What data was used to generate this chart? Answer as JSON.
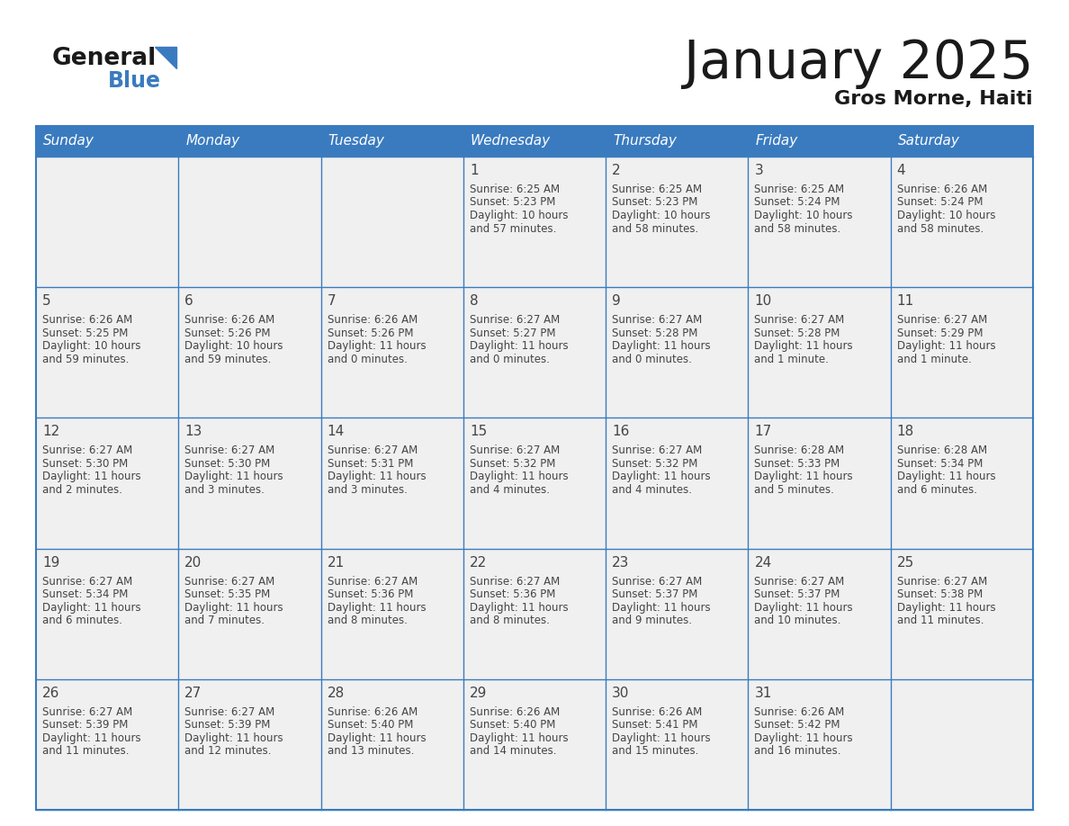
{
  "title": "January 2025",
  "subtitle": "Gros Morne, Haiti",
  "days_of_week": [
    "Sunday",
    "Monday",
    "Tuesday",
    "Wednesday",
    "Thursday",
    "Friday",
    "Saturday"
  ],
  "header_bg": "#3a7bbf",
  "header_text": "#ffffff",
  "cell_bg": "#f0f0f0",
  "border_color": "#3a7bbf",
  "text_color": "#444444",
  "calendar": [
    [
      {
        "day": null,
        "sunrise": null,
        "sunset": null,
        "daylight_hours": null,
        "daylight_mins": null,
        "daylight_min_word": null
      },
      {
        "day": null,
        "sunrise": null,
        "sunset": null,
        "daylight_hours": null,
        "daylight_mins": null,
        "daylight_min_word": null
      },
      {
        "day": null,
        "sunrise": null,
        "sunset": null,
        "daylight_hours": null,
        "daylight_mins": null,
        "daylight_min_word": null
      },
      {
        "day": 1,
        "sunrise": "6:25 AM",
        "sunset": "5:23 PM",
        "daylight_hours": 10,
        "daylight_mins": 57,
        "daylight_min_word": "minutes"
      },
      {
        "day": 2,
        "sunrise": "6:25 AM",
        "sunset": "5:23 PM",
        "daylight_hours": 10,
        "daylight_mins": 58,
        "daylight_min_word": "minutes"
      },
      {
        "day": 3,
        "sunrise": "6:25 AM",
        "sunset": "5:24 PM",
        "daylight_hours": 10,
        "daylight_mins": 58,
        "daylight_min_word": "minutes"
      },
      {
        "day": 4,
        "sunrise": "6:26 AM",
        "sunset": "5:24 PM",
        "daylight_hours": 10,
        "daylight_mins": 58,
        "daylight_min_word": "minutes"
      }
    ],
    [
      {
        "day": 5,
        "sunrise": "6:26 AM",
        "sunset": "5:25 PM",
        "daylight_hours": 10,
        "daylight_mins": 59,
        "daylight_min_word": "minutes"
      },
      {
        "day": 6,
        "sunrise": "6:26 AM",
        "sunset": "5:26 PM",
        "daylight_hours": 10,
        "daylight_mins": 59,
        "daylight_min_word": "minutes"
      },
      {
        "day": 7,
        "sunrise": "6:26 AM",
        "sunset": "5:26 PM",
        "daylight_hours": 11,
        "daylight_mins": 0,
        "daylight_min_word": "minutes"
      },
      {
        "day": 8,
        "sunrise": "6:27 AM",
        "sunset": "5:27 PM",
        "daylight_hours": 11,
        "daylight_mins": 0,
        "daylight_min_word": "minutes"
      },
      {
        "day": 9,
        "sunrise": "6:27 AM",
        "sunset": "5:28 PM",
        "daylight_hours": 11,
        "daylight_mins": 0,
        "daylight_min_word": "minutes"
      },
      {
        "day": 10,
        "sunrise": "6:27 AM",
        "sunset": "5:28 PM",
        "daylight_hours": 11,
        "daylight_mins": 1,
        "daylight_min_word": "minute"
      },
      {
        "day": 11,
        "sunrise": "6:27 AM",
        "sunset": "5:29 PM",
        "daylight_hours": 11,
        "daylight_mins": 1,
        "daylight_min_word": "minute"
      }
    ],
    [
      {
        "day": 12,
        "sunrise": "6:27 AM",
        "sunset": "5:30 PM",
        "daylight_hours": 11,
        "daylight_mins": 2,
        "daylight_min_word": "minutes"
      },
      {
        "day": 13,
        "sunrise": "6:27 AM",
        "sunset": "5:30 PM",
        "daylight_hours": 11,
        "daylight_mins": 3,
        "daylight_min_word": "minutes"
      },
      {
        "day": 14,
        "sunrise": "6:27 AM",
        "sunset": "5:31 PM",
        "daylight_hours": 11,
        "daylight_mins": 3,
        "daylight_min_word": "minutes"
      },
      {
        "day": 15,
        "sunrise": "6:27 AM",
        "sunset": "5:32 PM",
        "daylight_hours": 11,
        "daylight_mins": 4,
        "daylight_min_word": "minutes"
      },
      {
        "day": 16,
        "sunrise": "6:27 AM",
        "sunset": "5:32 PM",
        "daylight_hours": 11,
        "daylight_mins": 4,
        "daylight_min_word": "minutes"
      },
      {
        "day": 17,
        "sunrise": "6:28 AM",
        "sunset": "5:33 PM",
        "daylight_hours": 11,
        "daylight_mins": 5,
        "daylight_min_word": "minutes"
      },
      {
        "day": 18,
        "sunrise": "6:28 AM",
        "sunset": "5:34 PM",
        "daylight_hours": 11,
        "daylight_mins": 6,
        "daylight_min_word": "minutes"
      }
    ],
    [
      {
        "day": 19,
        "sunrise": "6:27 AM",
        "sunset": "5:34 PM",
        "daylight_hours": 11,
        "daylight_mins": 6,
        "daylight_min_word": "minutes"
      },
      {
        "day": 20,
        "sunrise": "6:27 AM",
        "sunset": "5:35 PM",
        "daylight_hours": 11,
        "daylight_mins": 7,
        "daylight_min_word": "minutes"
      },
      {
        "day": 21,
        "sunrise": "6:27 AM",
        "sunset": "5:36 PM",
        "daylight_hours": 11,
        "daylight_mins": 8,
        "daylight_min_word": "minutes"
      },
      {
        "day": 22,
        "sunrise": "6:27 AM",
        "sunset": "5:36 PM",
        "daylight_hours": 11,
        "daylight_mins": 8,
        "daylight_min_word": "minutes"
      },
      {
        "day": 23,
        "sunrise": "6:27 AM",
        "sunset": "5:37 PM",
        "daylight_hours": 11,
        "daylight_mins": 9,
        "daylight_min_word": "minutes"
      },
      {
        "day": 24,
        "sunrise": "6:27 AM",
        "sunset": "5:37 PM",
        "daylight_hours": 11,
        "daylight_mins": 10,
        "daylight_min_word": "minutes"
      },
      {
        "day": 25,
        "sunrise": "6:27 AM",
        "sunset": "5:38 PM",
        "daylight_hours": 11,
        "daylight_mins": 11,
        "daylight_min_word": "minutes"
      }
    ],
    [
      {
        "day": 26,
        "sunrise": "6:27 AM",
        "sunset": "5:39 PM",
        "daylight_hours": 11,
        "daylight_mins": 11,
        "daylight_min_word": "minutes"
      },
      {
        "day": 27,
        "sunrise": "6:27 AM",
        "sunset": "5:39 PM",
        "daylight_hours": 11,
        "daylight_mins": 12,
        "daylight_min_word": "minutes"
      },
      {
        "day": 28,
        "sunrise": "6:26 AM",
        "sunset": "5:40 PM",
        "daylight_hours": 11,
        "daylight_mins": 13,
        "daylight_min_word": "minutes"
      },
      {
        "day": 29,
        "sunrise": "6:26 AM",
        "sunset": "5:40 PM",
        "daylight_hours": 11,
        "daylight_mins": 14,
        "daylight_min_word": "minutes"
      },
      {
        "day": 30,
        "sunrise": "6:26 AM",
        "sunset": "5:41 PM",
        "daylight_hours": 11,
        "daylight_mins": 15,
        "daylight_min_word": "minutes"
      },
      {
        "day": 31,
        "sunrise": "6:26 AM",
        "sunset": "5:42 PM",
        "daylight_hours": 11,
        "daylight_mins": 16,
        "daylight_min_word": "minutes"
      },
      {
        "day": null,
        "sunrise": null,
        "sunset": null,
        "daylight_hours": null,
        "daylight_mins": null,
        "daylight_min_word": null
      }
    ]
  ]
}
